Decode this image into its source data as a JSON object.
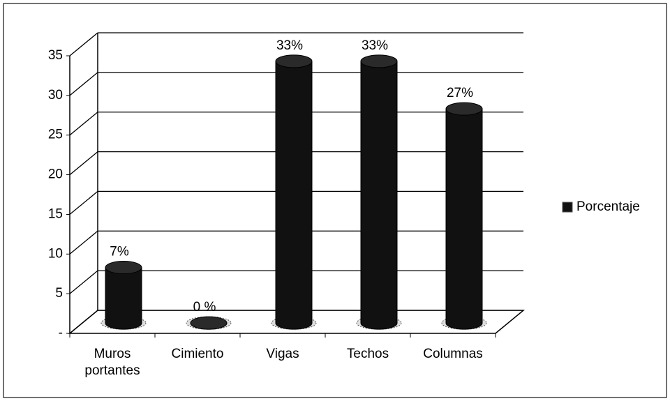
{
  "chart_data": {
    "type": "bar",
    "categories": [
      "Muros portantes",
      "Cimiento",
      "Vigas",
      "Techos",
      "Columnas"
    ],
    "series": [
      {
        "name": "Porcentaje",
        "color": "#111111",
        "values": [
          7,
          0,
          33,
          33,
          27
        ],
        "value_labels": [
          "7%",
          "0 %",
          "33%",
          "33%",
          "27%"
        ]
      }
    ],
    "ylim": [
      0,
      35
    ],
    "yticks": [
      {
        "value": 0,
        "label": "-"
      },
      5,
      10,
      15,
      20,
      25,
      30,
      35
    ],
    "grid": true,
    "legend": "right"
  }
}
